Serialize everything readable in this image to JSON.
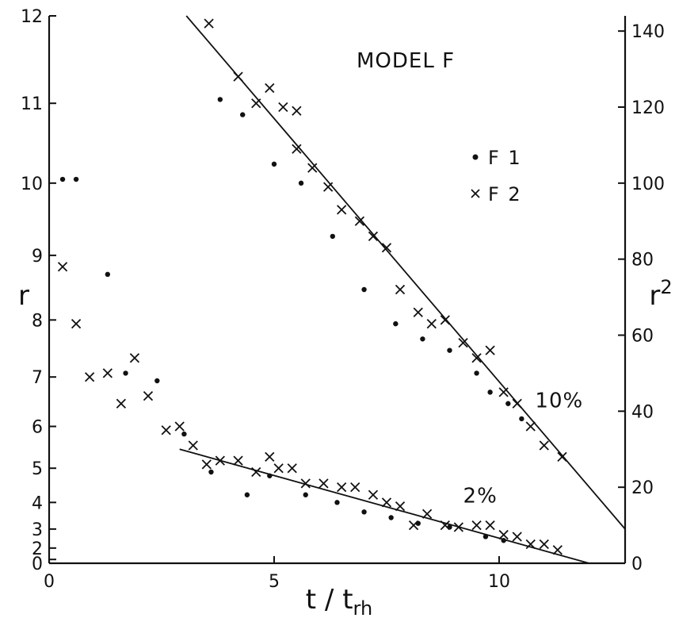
{
  "chart_data": {
    "type": "scatter",
    "title": "MODEL F",
    "xlabel": "t / t",
    "xlabel_sub": "rh",
    "ylabel_left": "r",
    "ylabel_right": "r",
    "ylabel_right_sup": "2",
    "xlim": [
      0,
      12.8
    ],
    "ylim_r2": [
      0,
      144
    ],
    "x_ticks": [
      0,
      5,
      10
    ],
    "x_tick_labels": [
      "0",
      "5",
      "10"
    ],
    "left_ticks": [
      0,
      1,
      2,
      3,
      4,
      5,
      6,
      7,
      8,
      9,
      10,
      11,
      12
    ],
    "left_tick_labels": [
      "0",
      "",
      "2",
      "3",
      "4",
      "5",
      "6",
      "7",
      "8",
      "9",
      "10",
      "11",
      "12"
    ],
    "right_ticks": [
      0,
      20,
      40,
      60,
      80,
      100,
      120,
      140
    ],
    "right_tick_labels": [
      "0",
      "20",
      "40",
      "60",
      "80",
      "100",
      "120",
      "140"
    ],
    "legend": [
      {
        "marker": "dot",
        "label": "F 1"
      },
      {
        "marker": "cross",
        "label": "F 2"
      }
    ],
    "annotations": [
      {
        "text": "10%",
        "x": 10.8,
        "y": 41
      },
      {
        "text": "2%",
        "x": 9.2,
        "y": 16
      }
    ],
    "series": [
      {
        "name": "F 1",
        "marker": "dot",
        "points": [
          [
            0.3,
            101
          ],
          [
            0.6,
            101
          ],
          [
            1.3,
            76
          ],
          [
            1.7,
            50
          ],
          [
            2.4,
            48
          ],
          [
            3.0,
            34
          ],
          [
            3.6,
            24
          ],
          [
            3.8,
            122
          ],
          [
            4.3,
            118
          ],
          [
            4.4,
            18
          ],
          [
            4.9,
            23
          ],
          [
            5.0,
            105
          ],
          [
            5.6,
            100
          ],
          [
            5.7,
            18
          ],
          [
            6.3,
            86
          ],
          [
            6.4,
            16
          ],
          [
            7.0,
            72
          ],
          [
            7.0,
            13.5
          ],
          [
            7.6,
            12
          ],
          [
            7.7,
            63
          ],
          [
            8.2,
            10.5
          ],
          [
            8.3,
            59
          ],
          [
            8.9,
            56
          ],
          [
            8.9,
            9.5
          ],
          [
            9.5,
            50
          ],
          [
            9.7,
            7
          ],
          [
            9.8,
            45
          ],
          [
            10.1,
            6
          ],
          [
            10.2,
            42
          ],
          [
            10.5,
            38
          ]
        ]
      },
      {
        "name": "F 2",
        "marker": "cross",
        "points": [
          [
            0.3,
            78
          ],
          [
            0.6,
            63
          ],
          [
            0.9,
            49
          ],
          [
            1.3,
            50
          ],
          [
            1.6,
            42
          ],
          [
            1.9,
            54
          ],
          [
            2.2,
            44
          ],
          [
            2.6,
            35
          ],
          [
            2.9,
            36
          ],
          [
            3.2,
            31
          ],
          [
            3.5,
            26
          ],
          [
            3.55,
            142
          ],
          [
            3.8,
            27
          ],
          [
            4.2,
            27
          ],
          [
            4.2,
            128
          ],
          [
            4.6,
            24
          ],
          [
            4.6,
            121
          ],
          [
            4.9,
            28
          ],
          [
            4.9,
            125
          ],
          [
            5.1,
            25
          ],
          [
            5.2,
            120
          ],
          [
            5.4,
            25
          ],
          [
            5.5,
            119
          ],
          [
            5.5,
            109
          ],
          [
            5.7,
            21
          ],
          [
            5.85,
            104
          ],
          [
            6.1,
            21
          ],
          [
            6.2,
            99
          ],
          [
            6.5,
            20
          ],
          [
            6.5,
            93
          ],
          [
            6.8,
            20
          ],
          [
            6.9,
            90
          ],
          [
            7.2,
            18
          ],
          [
            7.2,
            86
          ],
          [
            7.5,
            16
          ],
          [
            7.5,
            83
          ],
          [
            7.8,
            15
          ],
          [
            7.8,
            72
          ],
          [
            8.1,
            10
          ],
          [
            8.2,
            66
          ],
          [
            8.4,
            13
          ],
          [
            8.5,
            63
          ],
          [
            8.8,
            10
          ],
          [
            8.8,
            64
          ],
          [
            9.1,
            9.5
          ],
          [
            9.2,
            58
          ],
          [
            9.5,
            10
          ],
          [
            9.5,
            54
          ],
          [
            9.8,
            10
          ],
          [
            9.8,
            56
          ],
          [
            10.1,
            7.5
          ],
          [
            10.1,
            45
          ],
          [
            10.4,
            7
          ],
          [
            10.4,
            42
          ],
          [
            10.7,
            5
          ],
          [
            10.7,
            36
          ],
          [
            11.0,
            5
          ],
          [
            11.0,
            31
          ],
          [
            11.3,
            3.5
          ],
          [
            11.4,
            28
          ]
        ]
      }
    ],
    "fit_lines": [
      {
        "label": "10%",
        "from": [
          3.05,
          144
        ],
        "to": [
          12.8,
          9
        ]
      },
      {
        "label": "2%",
        "from": [
          2.9,
          30
        ],
        "to": [
          12.0,
          0
        ]
      }
    ]
  }
}
